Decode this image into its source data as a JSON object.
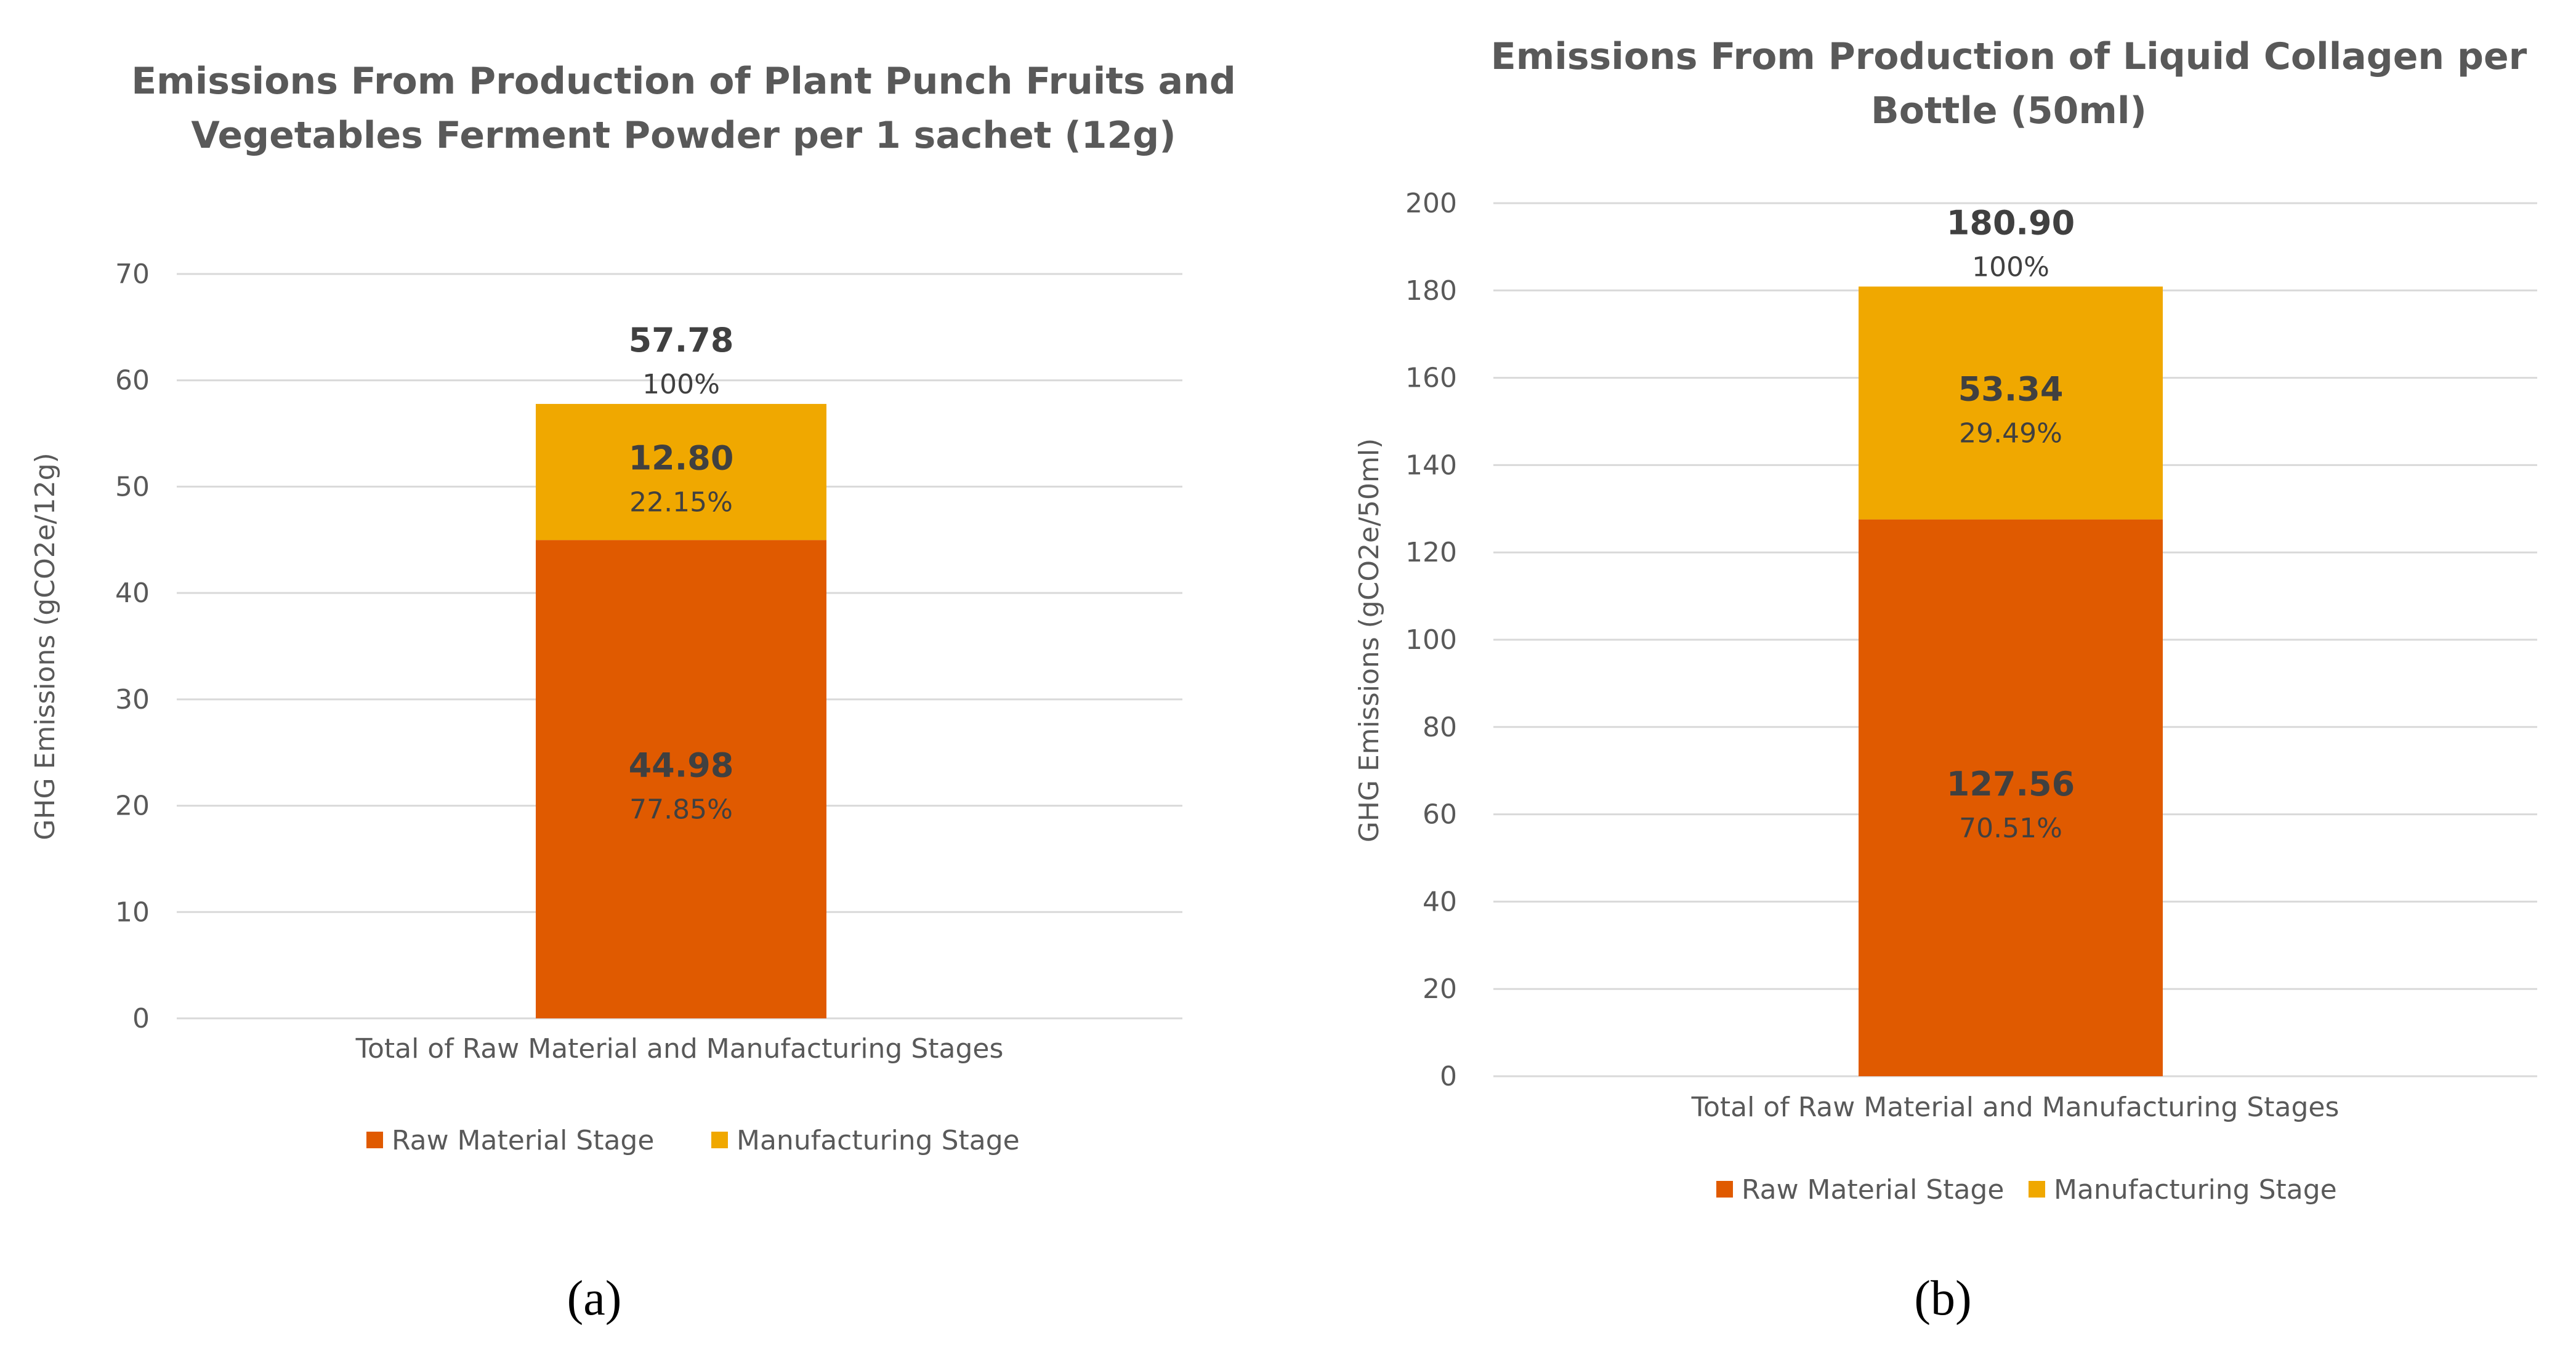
{
  "chart_data": [
    {
      "type": "bar",
      "stacked": true,
      "panel_label": "(a)",
      "title_lines": [
        "Emissions From Production of Plant Punch Fruits and",
        "Vegetables Ferment Powder per 1 sachet (12g)"
      ],
      "ylabel": "GHG Emissions (gCO2e/12g)",
      "categories": [
        "Total of Raw Material and Manufacturing Stages"
      ],
      "ylim": [
        0,
        70
      ],
      "yticks": [
        "0",
        "10",
        "20",
        "30",
        "40",
        "50",
        "60",
        "70"
      ],
      "grid": true,
      "series": [
        {
          "name": "Raw Material Stage",
          "color": "#E05A00",
          "values": [
            44.98
          ],
          "value_labels": [
            "44.98"
          ],
          "pct_labels": [
            "77.85%"
          ]
        },
        {
          "name": "Manufacturing Stage",
          "color": "#F0A800",
          "values": [
            12.8
          ],
          "value_labels": [
            "12.80"
          ],
          "pct_labels": [
            "22.15%"
          ]
        }
      ],
      "total": {
        "value": 57.78,
        "value_label": "57.78",
        "pct_label": "100%"
      },
      "legend": [
        "Raw Material Stage",
        "Manufacturing Stage"
      ],
      "legend_position": "bottom"
    },
    {
      "type": "bar",
      "stacked": true,
      "panel_label": "(b)",
      "title_lines": [
        "Emissions From Production of Liquid Collagen per",
        "Bottle (50ml)"
      ],
      "ylabel": "GHG Emissions (gCO2e/50ml)",
      "categories": [
        "Total of Raw Material and Manufacturing Stages"
      ],
      "ylim": [
        0,
        200
      ],
      "yticks": [
        "0",
        "20",
        "40",
        "60",
        "80",
        "100",
        "120",
        "140",
        "160",
        "180",
        "200"
      ],
      "grid": true,
      "series": [
        {
          "name": "Raw Material Stage",
          "color": "#E05A00",
          "values": [
            127.56
          ],
          "value_labels": [
            "127.56"
          ],
          "pct_labels": [
            "70.51%"
          ]
        },
        {
          "name": "Manufacturing Stage",
          "color": "#F0A800",
          "values": [
            53.34
          ],
          "value_labels": [
            "53.34"
          ],
          "pct_labels": [
            "29.49%"
          ]
        }
      ],
      "total": {
        "value": 180.9,
        "value_label": "180.90",
        "pct_label": "100%"
      },
      "legend": [
        "Raw Material Stage",
        "Manufacturing Stage"
      ],
      "legend_position": "bottom"
    }
  ]
}
